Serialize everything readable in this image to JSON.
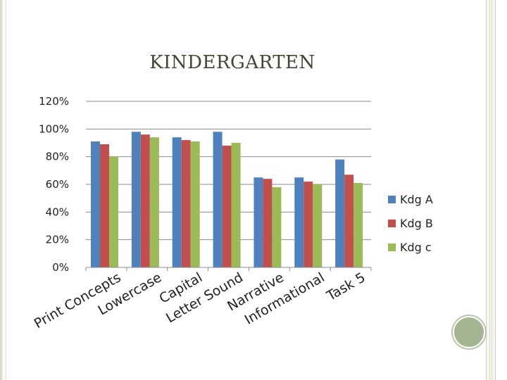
{
  "chart_data": {
    "type": "bar",
    "title": "KINDERGARTEN",
    "categories": [
      "Print Concepts",
      "Lowercase",
      "Capital",
      "Letter Sound",
      "Narrative",
      "Informational",
      "Task 5"
    ],
    "series": [
      {
        "name": "Kdg A",
        "color": "#4f81bd",
        "values": [
          91,
          98,
          94,
          98,
          65,
          65,
          78
        ]
      },
      {
        "name": "Kdg B",
        "color": "#c0504d",
        "values": [
          89,
          96,
          92,
          88,
          64,
          62,
          67
        ]
      },
      {
        "name": "Kdg c",
        "color": "#9bbb59",
        "values": [
          80,
          94,
          91,
          90,
          58,
          60,
          61
        ]
      }
    ],
    "y_ticks": [
      "0%",
      "20%",
      "40%",
      "60%",
      "80%",
      "100%",
      "120%"
    ],
    "ylim": [
      0,
      120
    ],
    "grid": true,
    "legend_position": "right",
    "xlabel": "",
    "ylabel": ""
  }
}
